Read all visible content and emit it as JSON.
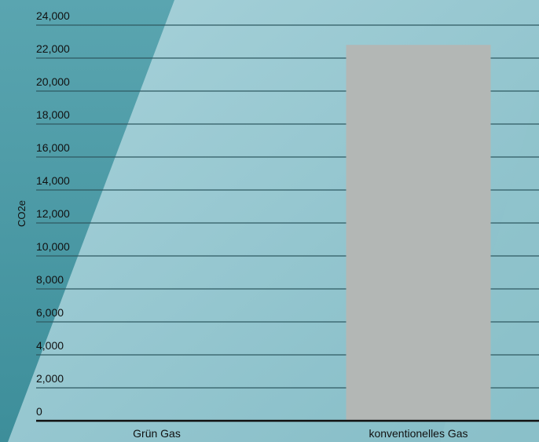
{
  "chart_data": {
    "type": "bar",
    "categories": [
      "Grün Gas",
      "konventionelles Gas"
    ],
    "values": [
      0,
      22800
    ],
    "ylabel": "CO2e",
    "ylim": [
      0,
      24000
    ],
    "yticks": [
      "0",
      "2,000",
      "4,000",
      "6,000",
      "8,000",
      "10,000",
      "12,000",
      "14,000",
      "16,000",
      "18,000",
      "20,000",
      "22,000",
      "24,000"
    ],
    "grid": true,
    "legend": "none",
    "colors": {
      "bar": "#b3b7b5",
      "grid": "#2f5a62",
      "axis": "#111111",
      "background_light": "#9ccbd3",
      "background_dark": "#4a9aa6"
    }
  }
}
